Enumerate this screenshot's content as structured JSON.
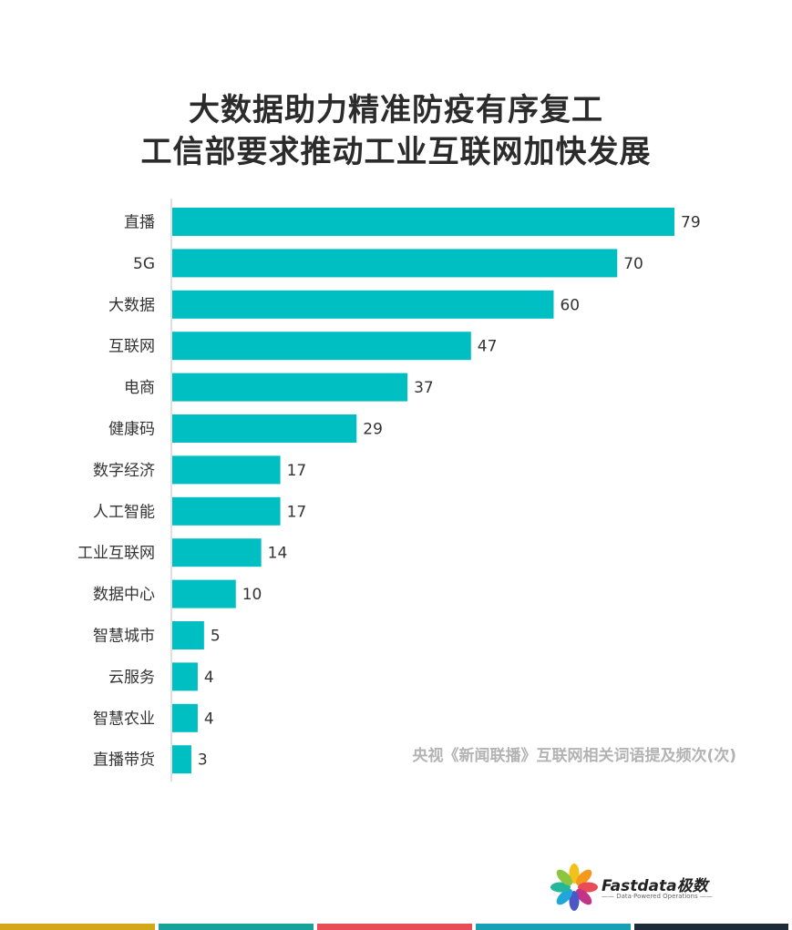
{
  "header": {
    "title_line1": "大数据助力精准防疫有序复工",
    "title_line2": "工信部要求推动工业互联网加快发展"
  },
  "chart_data": {
    "type": "bar",
    "orientation": "horizontal",
    "categories": [
      "直播",
      "5G",
      "大数据",
      "互联网",
      "电商",
      "健康码",
      "数字经济",
      "人工智能",
      "工业互联网",
      "数据中心",
      "智慧城市",
      "云服务",
      "智慧农业",
      "直播带货"
    ],
    "values": [
      79,
      70,
      60,
      47,
      37,
      29,
      17,
      17,
      14,
      10,
      5,
      4,
      4,
      3
    ],
    "annotation": "央视《新闻联播》互联网相关词语提及频次(次)",
    "xlim": [
      0,
      79
    ],
    "grid": false,
    "bar_color": "#00bfc2",
    "data_labels": true
  },
  "brand": {
    "name": "Fastdata极数",
    "tagline": "—— Data·Powered Operations ——"
  },
  "colors": {
    "accent": "#00bfc2",
    "footer": [
      "#d4a619",
      "#18a39a",
      "#e84c57",
      "#16a0b4",
      "#1d2b3a"
    ]
  }
}
